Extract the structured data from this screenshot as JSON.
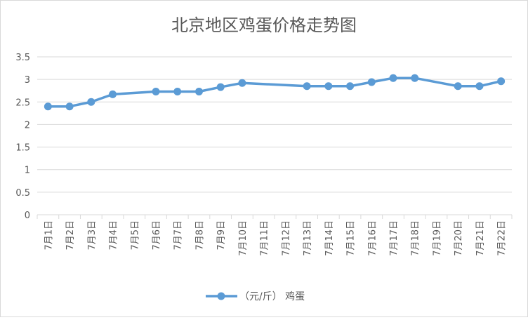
{
  "chart_data": {
    "type": "line",
    "title": "北京地区鸡蛋价格走势图",
    "xlabel": "",
    "ylabel": "",
    "categories": [
      "7月1日",
      "7月2日",
      "7月3日",
      "7月4日",
      "7月5日",
      "7月6日",
      "7月7日",
      "7月8日",
      "7月9日",
      "7月10日",
      "7月11日",
      "7月12日",
      "7月13日",
      "7月14日",
      "7月15日",
      "7月16日",
      "7月17日",
      "7月18日",
      "7月19日",
      "7月20日",
      "7月21日",
      "7月22日"
    ],
    "yticks": [
      "0",
      "0.5",
      "1",
      "1.5",
      "2",
      "2.5",
      "3",
      "3.5"
    ],
    "ylim": [
      0,
      3.5
    ],
    "grid": true,
    "legend": "bottom",
    "series": [
      {
        "name": "（元/斤） 鸡蛋",
        "color": "#5b9bd5",
        "values": [
          2.4,
          2.4,
          2.5,
          2.67,
          null,
          2.73,
          2.73,
          2.73,
          2.83,
          2.92,
          null,
          null,
          2.85,
          2.85,
          2.85,
          2.94,
          3.03,
          3.03,
          null,
          2.85,
          2.85,
          2.96
        ]
      }
    ]
  }
}
